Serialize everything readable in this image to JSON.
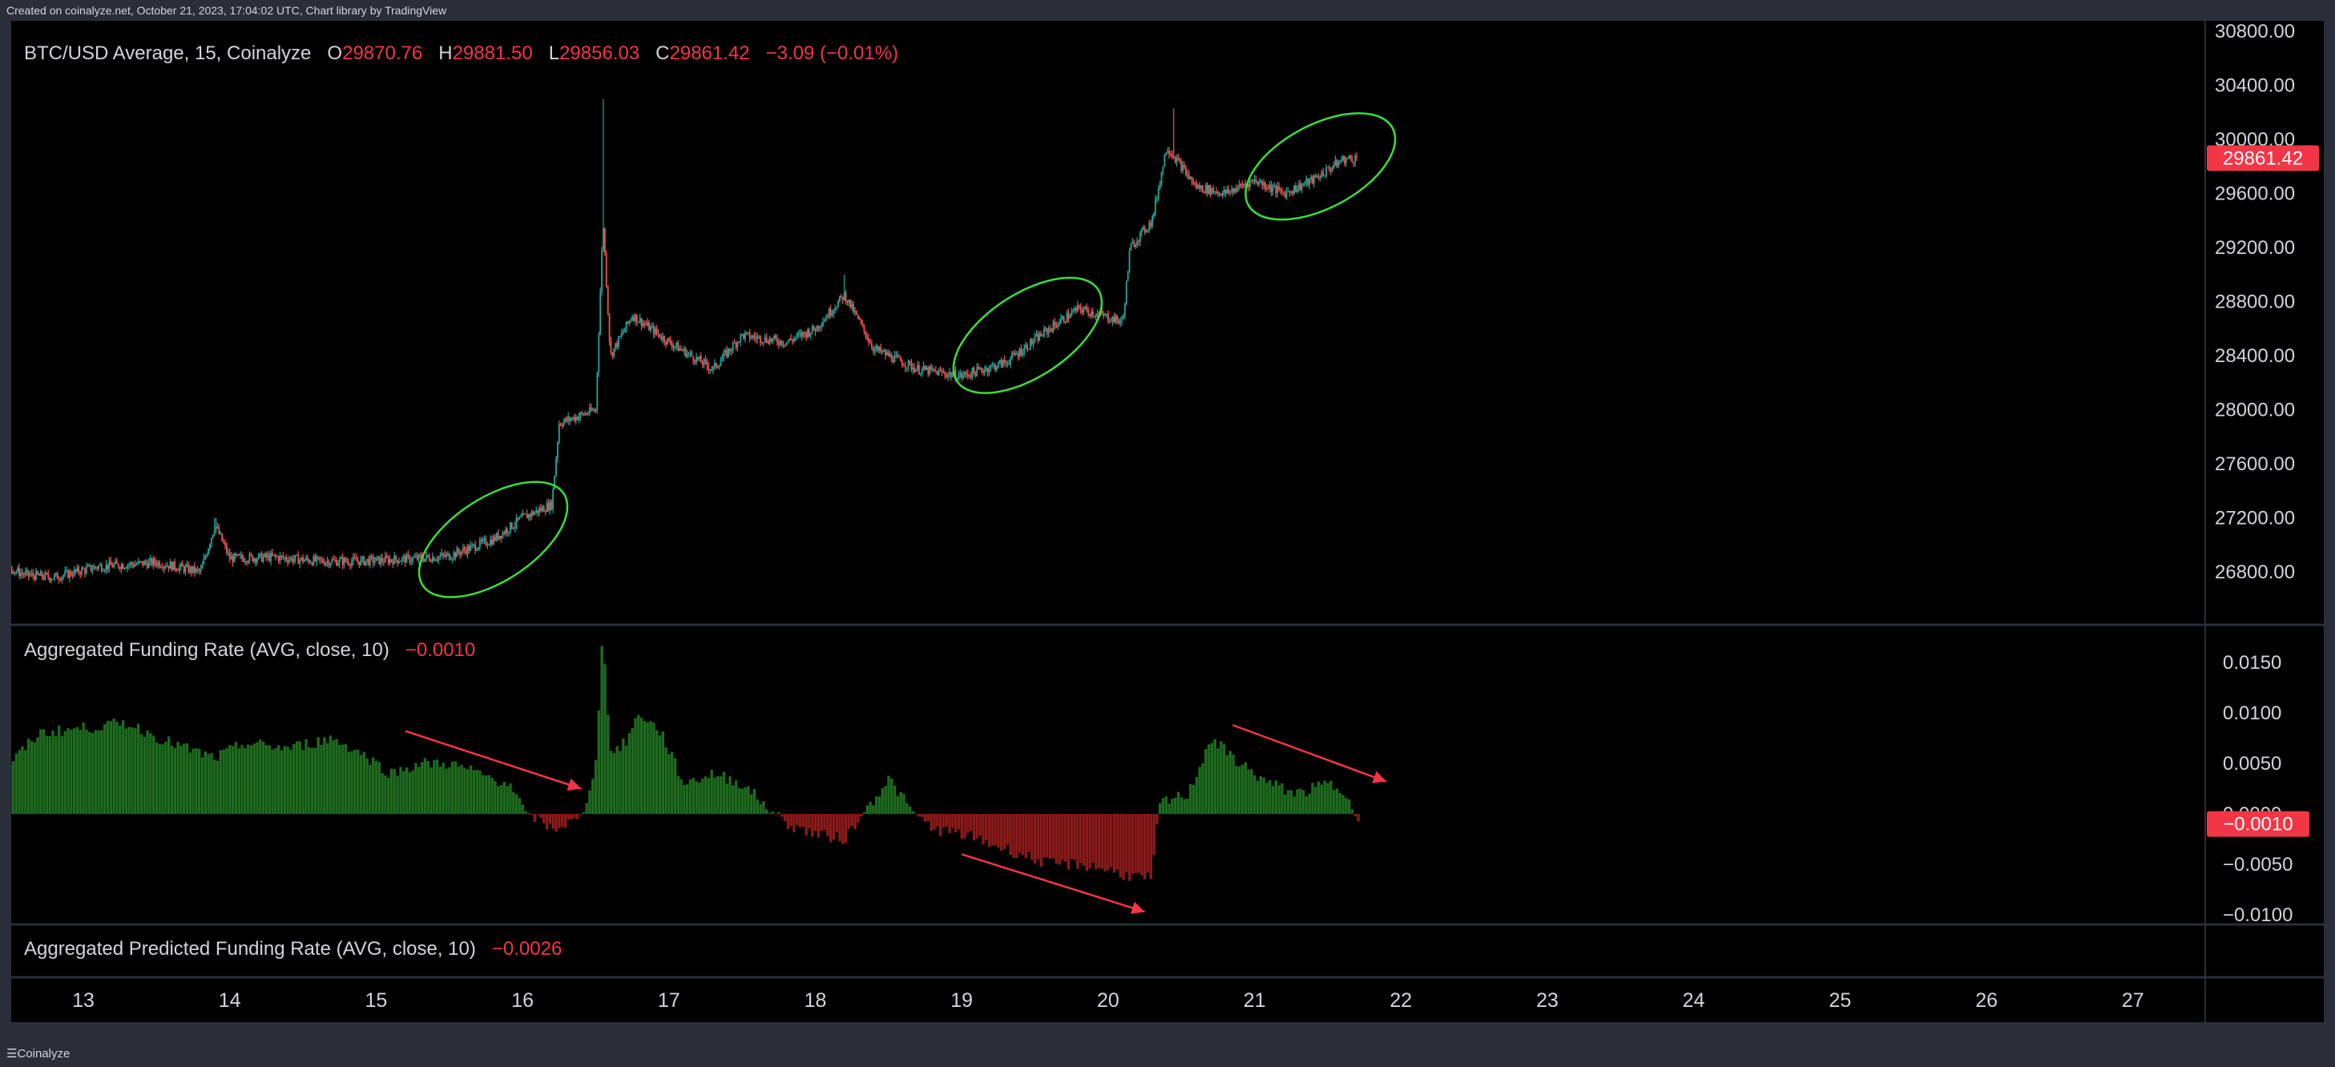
{
  "watermark": "Created on coinalyze.net, October 21, 2023, 17:04:02 UTC, Chart library by TradingView",
  "brand": "Coinalyze",
  "colors": {
    "up": "#26a69a",
    "down": "#ef5350",
    "hist_up": "#1e6b1e",
    "hist_down": "#8b1a1a",
    "ellipse": "#3ddc3d",
    "arrow": "#f23645",
    "badge": "#f23645"
  },
  "price_pane": {
    "symbol": "BTC/USD Average, 15, Coinalyze",
    "o_label": "O",
    "o_value": "29870.76",
    "h_label": "H",
    "h_value": "29881.50",
    "l_label": "L",
    "l_value": "29856.03",
    "c_label": "C",
    "c_value": "29861.42",
    "change": "−3.09 (−0.01%)",
    "last_badge": "29861.42"
  },
  "funding_pane": {
    "title": "Aggregated Funding Rate (AVG, close, 10)",
    "value": "−0.0010",
    "badge": "−0.0010"
  },
  "predicted_pane": {
    "title": "Aggregated Predicted Funding Rate (AVG, close, 10)",
    "value": "−0.0026"
  },
  "chart_data": [
    {
      "type": "candlestick",
      "title": "BTC/USD Average, 15, Coinalyze",
      "x_ticks": [
        "13",
        "14",
        "15",
        "16",
        "17",
        "18",
        "19",
        "20",
        "21",
        "22",
        "23",
        "24",
        "25",
        "26",
        "27"
      ],
      "y_ticks": [
        "26800.00",
        "27200.00",
        "27600.00",
        "28000.00",
        "28400.00",
        "28800.00",
        "29200.00",
        "29600.00",
        "30000.00",
        "30400.00",
        "30800.00"
      ],
      "ylim": [
        26600,
        30800
      ],
      "close_path": [
        [
          12.0,
          26880
        ],
        [
          12.3,
          26920
        ],
        [
          12.6,
          26780
        ],
        [
          12.8,
          26760
        ],
        [
          13.1,
          26840
        ],
        [
          13.5,
          26870
        ],
        [
          13.8,
          26800
        ],
        [
          13.9,
          27150
        ],
        [
          14.0,
          26900
        ],
        [
          14.3,
          26910
        ],
        [
          14.6,
          26880
        ],
        [
          14.9,
          26880
        ],
        [
          15.3,
          26900
        ],
        [
          15.5,
          26920
        ],
        [
          15.8,
          27040
        ],
        [
          16.0,
          27200
        ],
        [
          16.2,
          27300
        ],
        [
          16.25,
          27900
        ],
        [
          16.5,
          28000
        ],
        [
          16.55,
          29400
        ],
        [
          16.6,
          28400
        ],
        [
          16.75,
          28700
        ],
        [
          17.0,
          28500
        ],
        [
          17.3,
          28300
        ],
        [
          17.5,
          28550
        ],
        [
          17.8,
          28500
        ],
        [
          18.0,
          28600
        ],
        [
          18.2,
          28850
        ],
        [
          18.4,
          28450
        ],
        [
          18.7,
          28300
        ],
        [
          19.0,
          28250
        ],
        [
          19.3,
          28350
        ],
        [
          19.6,
          28600
        ],
        [
          19.8,
          28750
        ],
        [
          20.1,
          28650
        ],
        [
          20.15,
          29200
        ],
        [
          20.3,
          29400
        ],
        [
          20.4,
          29950
        ],
        [
          20.5,
          29800
        ],
        [
          20.6,
          29650
        ],
        [
          20.8,
          29600
        ],
        [
          21.0,
          29700
        ],
        [
          21.2,
          29600
        ],
        [
          21.4,
          29700
        ],
        [
          21.6,
          29850
        ],
        [
          21.7,
          29861
        ]
      ],
      "spike_highs": [
        [
          13.9,
          27200
        ],
        [
          16.55,
          30300
        ],
        [
          18.2,
          29000
        ],
        [
          20.45,
          30230
        ]
      ],
      "last_price": 29861.42,
      "annotations": [
        "green ellipse around Oct 15.5-16.2 rise",
        "green ellipse around Oct 19-19.9 rise",
        "green ellipse around Oct 20.9-21.9 rise"
      ]
    },
    {
      "type": "bar",
      "title": "Aggregated Funding Rate (AVG, close, 10)",
      "y_ticks": [
        "0.0150",
        "0.0100",
        "0.0050",
        "0.0000",
        "−0.0050",
        "−0.0100"
      ],
      "ylim": [
        -0.0108,
        0.0188
      ],
      "path": [
        [
          12.0,
          0.0095
        ],
        [
          12.3,
          0.01
        ],
        [
          12.5,
          0.005
        ],
        [
          12.7,
          0.008
        ],
        [
          13.0,
          0.0085
        ],
        [
          13.3,
          0.009
        ],
        [
          13.6,
          0.007
        ],
        [
          13.9,
          0.0055
        ],
        [
          14.1,
          0.007
        ],
        [
          14.4,
          0.0065
        ],
        [
          14.7,
          0.0075
        ],
        [
          14.9,
          0.006
        ],
        [
          15.1,
          0.004
        ],
        [
          15.3,
          0.005
        ],
        [
          15.5,
          0.005
        ],
        [
          15.7,
          0.004
        ],
        [
          15.9,
          0.003
        ],
        [
          16.0,
          0.0005
        ],
        [
          16.2,
          -0.0015
        ],
        [
          16.4,
          -0.0005
        ],
        [
          16.5,
          0.005
        ],
        [
          16.55,
          0.0185
        ],
        [
          16.6,
          0.006
        ],
        [
          16.7,
          0.007
        ],
        [
          16.8,
          0.01
        ],
        [
          16.95,
          0.008
        ],
        [
          17.1,
          0.003
        ],
        [
          17.3,
          0.004
        ],
        [
          17.5,
          0.003
        ],
        [
          17.65,
          0.001
        ],
        [
          17.8,
          -0.001
        ],
        [
          18.0,
          -0.002
        ],
        [
          18.2,
          -0.0025
        ],
        [
          18.35,
          0.0005
        ],
        [
          18.5,
          0.0035
        ],
        [
          18.65,
          0.0005
        ],
        [
          18.8,
          -0.0015
        ],
        [
          19.0,
          -0.002
        ],
        [
          19.2,
          -0.003
        ],
        [
          19.4,
          -0.004
        ],
        [
          19.6,
          -0.005
        ],
        [
          19.8,
          -0.005
        ],
        [
          20.0,
          -0.0055
        ],
        [
          20.1,
          -0.006
        ],
        [
          20.3,
          -0.0065
        ],
        [
          20.35,
          0.001
        ],
        [
          20.55,
          0.002
        ],
        [
          20.7,
          0.0075
        ],
        [
          20.9,
          0.005
        ],
        [
          21.1,
          0.003
        ],
        [
          21.3,
          0.002
        ],
        [
          21.5,
          0.003
        ],
        [
          21.65,
          0.002
        ],
        [
          21.7,
          -0.001
        ]
      ],
      "last_value": -0.001,
      "annotations": [
        "red down arrow Oct 15.2-16.4",
        "red down arrow Oct 19-20.3",
        "red down arrow Oct 20.8-21.9"
      ]
    },
    {
      "type": "line",
      "title": "Aggregated Predicted Funding Rate (AVG, close, 10)",
      "last_value": -0.0026
    }
  ]
}
